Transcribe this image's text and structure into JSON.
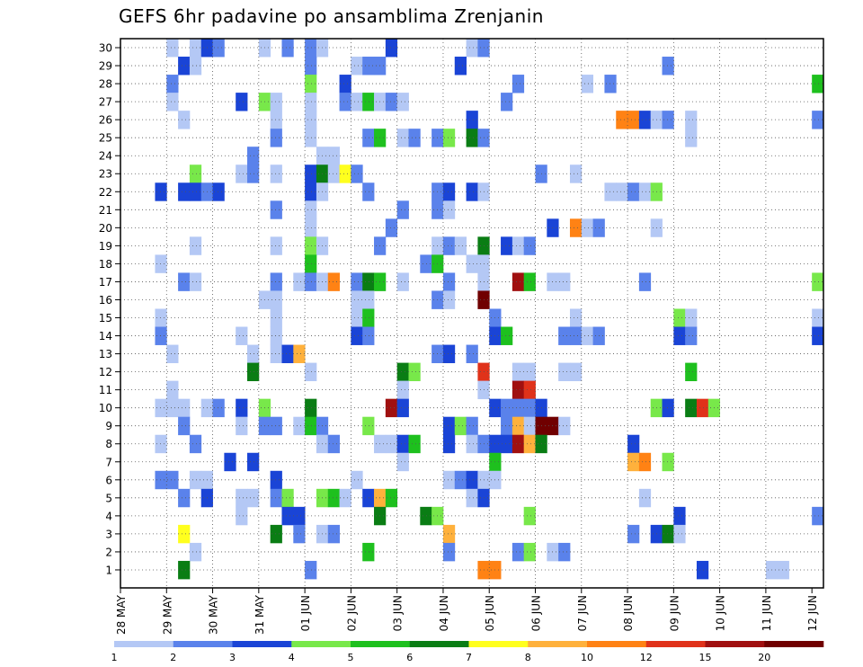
{
  "chart_data": {
    "type": "heatmap",
    "title": "GEFS 6hr padavine po ansamblima Zrenjanin",
    "x_tick_labels": [
      "28 MAY",
      "29 MAY",
      "30 MAY",
      "31 MAY",
      "01 JUN",
      "02 JUN",
      "03 JUN",
      "04 JUN",
      "05 JUN",
      "06 JUN",
      "07 JUN",
      "08 JUN",
      "09 JUN",
      "10 JUN",
      "11 JUN",
      "12 JUN"
    ],
    "y_range": [
      0,
      30
    ],
    "y_ticks": [
      1,
      2,
      3,
      4,
      5,
      6,
      7,
      8,
      9,
      10,
      11,
      12,
      13,
      14,
      15,
      16,
      17,
      18,
      19,
      20,
      21,
      22,
      23,
      24,
      25,
      26,
      27,
      28,
      29,
      30
    ],
    "time_steps_per_day": 4,
    "n_time_steps": 61,
    "grid": true,
    "colorbar": {
      "levels": [
        1,
        2,
        3,
        4,
        5,
        6,
        7,
        8,
        10,
        12,
        15,
        20
      ],
      "label_levels": [
        1,
        2,
        3,
        4,
        5,
        6,
        7,
        8,
        10,
        12,
        15,
        20
      ],
      "colors": [
        "#b4c8f5",
        "#5a82eb",
        "#1a44d6",
        "#78e84a",
        "#1ec01e",
        "#0a7d14",
        "#ffff1e",
        "#ffb13c",
        "#ff8214",
        "#e0321a",
        "#a01010",
        "#700000"
      ]
    },
    "cells": [
      [
        4,
        30,
        1
      ],
      [
        6,
        30,
        1
      ],
      [
        7,
        30,
        3
      ],
      [
        8,
        30,
        2
      ],
      [
        12,
        30,
        1
      ],
      [
        14,
        30,
        2
      ],
      [
        16,
        30,
        2
      ],
      [
        17,
        30,
        1
      ],
      [
        23,
        30,
        3
      ],
      [
        30,
        30,
        1
      ],
      [
        31,
        30,
        2
      ],
      [
        5,
        29,
        3
      ],
      [
        6,
        29,
        1
      ],
      [
        16,
        29,
        2
      ],
      [
        20,
        29,
        1
      ],
      [
        21,
        29,
        2
      ],
      [
        22,
        29,
        2
      ],
      [
        29,
        29,
        3
      ],
      [
        47,
        29,
        2
      ],
      [
        4,
        28,
        2
      ],
      [
        16,
        28,
        4
      ],
      [
        19,
        28,
        3
      ],
      [
        34,
        28,
        2
      ],
      [
        40,
        28,
        1
      ],
      [
        42,
        28,
        2
      ],
      [
        60,
        28,
        5
      ],
      [
        4,
        27,
        1
      ],
      [
        10,
        27,
        3
      ],
      [
        12,
        27,
        4
      ],
      [
        13,
        27,
        1
      ],
      [
        16,
        27,
        1
      ],
      [
        19,
        27,
        2
      ],
      [
        20,
        27,
        1
      ],
      [
        21,
        27,
        5
      ],
      [
        22,
        27,
        1
      ],
      [
        23,
        27,
        2
      ],
      [
        24,
        27,
        1
      ],
      [
        33,
        27,
        2
      ],
      [
        5,
        26,
        1
      ],
      [
        13,
        26,
        1
      ],
      [
        16,
        26,
        1
      ],
      [
        30,
        26,
        3
      ],
      [
        43,
        26,
        9
      ],
      [
        44,
        26,
        9
      ],
      [
        45,
        26,
        3
      ],
      [
        46,
        26,
        1
      ],
      [
        47,
        26,
        2
      ],
      [
        49,
        26,
        1
      ],
      [
        60,
        26,
        2
      ],
      [
        13,
        25,
        2
      ],
      [
        16,
        25,
        1
      ],
      [
        21,
        25,
        2
      ],
      [
        22,
        25,
        5
      ],
      [
        24,
        25,
        1
      ],
      [
        25,
        25,
        2
      ],
      [
        27,
        25,
        2
      ],
      [
        28,
        25,
        4
      ],
      [
        30,
        25,
        6
      ],
      [
        31,
        25,
        2
      ],
      [
        49,
        25,
        1
      ],
      [
        11,
        24,
        2
      ],
      [
        17,
        24,
        1
      ],
      [
        18,
        24,
        1
      ],
      [
        6,
        23,
        4
      ],
      [
        10,
        23,
        1
      ],
      [
        11,
        23,
        2
      ],
      [
        13,
        23,
        1
      ],
      [
        16,
        23,
        3
      ],
      [
        17,
        23,
        6
      ],
      [
        18,
        23,
        1
      ],
      [
        19,
        23,
        7
      ],
      [
        20,
        23,
        2
      ],
      [
        36,
        23,
        2
      ],
      [
        39,
        23,
        1
      ],
      [
        3,
        22,
        3
      ],
      [
        5,
        22,
        3
      ],
      [
        6,
        22,
        3
      ],
      [
        7,
        22,
        2
      ],
      [
        8,
        22,
        3
      ],
      [
        16,
        22,
        3
      ],
      [
        17,
        22,
        1
      ],
      [
        21,
        22,
        2
      ],
      [
        27,
        22,
        2
      ],
      [
        28,
        22,
        3
      ],
      [
        30,
        22,
        3
      ],
      [
        31,
        22,
        1
      ],
      [
        42,
        22,
        1
      ],
      [
        43,
        22,
        1
      ],
      [
        44,
        22,
        2
      ],
      [
        45,
        22,
        1
      ],
      [
        46,
        22,
        4
      ],
      [
        13,
        21,
        2
      ],
      [
        16,
        21,
        1
      ],
      [
        24,
        21,
        2
      ],
      [
        27,
        21,
        2
      ],
      [
        28,
        21,
        1
      ],
      [
        16,
        20,
        1
      ],
      [
        23,
        20,
        2
      ],
      [
        37,
        20,
        3
      ],
      [
        39,
        20,
        9
      ],
      [
        40,
        20,
        1
      ],
      [
        41,
        20,
        2
      ],
      [
        46,
        20,
        1
      ],
      [
        6,
        19,
        1
      ],
      [
        13,
        19,
        1
      ],
      [
        16,
        19,
        4
      ],
      [
        17,
        19,
        1
      ],
      [
        22,
        19,
        2
      ],
      [
        27,
        19,
        1
      ],
      [
        28,
        19,
        2
      ],
      [
        29,
        19,
        1
      ],
      [
        31,
        19,
        6
      ],
      [
        33,
        19,
        3
      ],
      [
        34,
        19,
        1
      ],
      [
        35,
        19,
        2
      ],
      [
        3,
        18,
        1
      ],
      [
        16,
        18,
        5
      ],
      [
        26,
        18,
        2
      ],
      [
        27,
        18,
        5
      ],
      [
        30,
        18,
        1
      ],
      [
        31,
        18,
        1
      ],
      [
        5,
        17,
        2
      ],
      [
        6,
        17,
        1
      ],
      [
        13,
        17,
        2
      ],
      [
        15,
        17,
        1
      ],
      [
        16,
        17,
        2
      ],
      [
        17,
        17,
        1
      ],
      [
        18,
        17,
        9
      ],
      [
        20,
        17,
        2
      ],
      [
        21,
        17,
        6
      ],
      [
        22,
        17,
        5
      ],
      [
        24,
        17,
        1
      ],
      [
        28,
        17,
        2
      ],
      [
        31,
        17,
        1
      ],
      [
        34,
        17,
        11
      ],
      [
        35,
        17,
        5
      ],
      [
        37,
        17,
        1
      ],
      [
        38,
        17,
        1
      ],
      [
        45,
        17,
        2
      ],
      [
        60,
        17,
        4
      ],
      [
        12,
        16,
        1
      ],
      [
        13,
        16,
        1
      ],
      [
        20,
        16,
        1
      ],
      [
        21,
        16,
        1
      ],
      [
        27,
        16,
        2
      ],
      [
        28,
        16,
        1
      ],
      [
        31,
        16,
        12
      ],
      [
        3,
        15,
        1
      ],
      [
        13,
        15,
        1
      ],
      [
        20,
        15,
        1
      ],
      [
        21,
        15,
        5
      ],
      [
        32,
        15,
        2
      ],
      [
        39,
        15,
        1
      ],
      [
        48,
        15,
        4
      ],
      [
        49,
        15,
        1
      ],
      [
        60,
        15,
        1
      ],
      [
        3,
        14,
        2
      ],
      [
        10,
        14,
        1
      ],
      [
        13,
        14,
        1
      ],
      [
        20,
        14,
        3
      ],
      [
        21,
        14,
        2
      ],
      [
        32,
        14,
        3
      ],
      [
        33,
        14,
        5
      ],
      [
        38,
        14,
        2
      ],
      [
        39,
        14,
        2
      ],
      [
        40,
        14,
        1
      ],
      [
        41,
        14,
        2
      ],
      [
        48,
        14,
        3
      ],
      [
        49,
        14,
        2
      ],
      [
        60,
        14,
        3
      ],
      [
        4,
        13,
        1
      ],
      [
        11,
        13,
        1
      ],
      [
        13,
        13,
        1
      ],
      [
        14,
        13,
        3
      ],
      [
        15,
        13,
        8
      ],
      [
        27,
        13,
        2
      ],
      [
        28,
        13,
        3
      ],
      [
        30,
        13,
        2
      ],
      [
        11,
        12,
        6
      ],
      [
        16,
        12,
        1
      ],
      [
        24,
        12,
        6
      ],
      [
        25,
        12,
        4
      ],
      [
        31,
        12,
        10
      ],
      [
        34,
        12,
        1
      ],
      [
        35,
        12,
        1
      ],
      [
        38,
        12,
        1
      ],
      [
        39,
        12,
        1
      ],
      [
        49,
        12,
        5
      ],
      [
        4,
        11,
        1
      ],
      [
        24,
        11,
        1
      ],
      [
        31,
        11,
        1
      ],
      [
        34,
        11,
        11
      ],
      [
        35,
        11,
        10
      ],
      [
        3,
        10,
        1
      ],
      [
        4,
        10,
        1
      ],
      [
        5,
        10,
        1
      ],
      [
        7,
        10,
        1
      ],
      [
        8,
        10,
        2
      ],
      [
        10,
        10,
        3
      ],
      [
        12,
        10,
        4
      ],
      [
        16,
        10,
        6
      ],
      [
        23,
        10,
        11
      ],
      [
        24,
        10,
        3
      ],
      [
        32,
        10,
        3
      ],
      [
        33,
        10,
        2
      ],
      [
        34,
        10,
        2
      ],
      [
        35,
        10,
        2
      ],
      [
        36,
        10,
        3
      ],
      [
        46,
        10,
        4
      ],
      [
        47,
        10,
        3
      ],
      [
        49,
        10,
        6
      ],
      [
        50,
        10,
        10
      ],
      [
        51,
        10,
        4
      ],
      [
        5,
        9,
        2
      ],
      [
        10,
        9,
        1
      ],
      [
        12,
        9,
        2
      ],
      [
        13,
        9,
        2
      ],
      [
        15,
        9,
        1
      ],
      [
        16,
        9,
        5
      ],
      [
        17,
        9,
        2
      ],
      [
        21,
        9,
        4
      ],
      [
        28,
        9,
        3
      ],
      [
        29,
        9,
        4
      ],
      [
        30,
        9,
        2
      ],
      [
        33,
        9,
        2
      ],
      [
        34,
        9,
        8
      ],
      [
        35,
        9,
        1
      ],
      [
        36,
        9,
        12
      ],
      [
        37,
        9,
        12
      ],
      [
        38,
        9,
        1
      ],
      [
        3,
        8,
        1
      ],
      [
        6,
        8,
        2
      ],
      [
        17,
        8,
        1
      ],
      [
        18,
        8,
        2
      ],
      [
        22,
        8,
        1
      ],
      [
        23,
        8,
        1
      ],
      [
        24,
        8,
        3
      ],
      [
        25,
        8,
        5
      ],
      [
        28,
        8,
        3
      ],
      [
        30,
        8,
        1
      ],
      [
        31,
        8,
        2
      ],
      [
        32,
        8,
        3
      ],
      [
        33,
        8,
        3
      ],
      [
        34,
        8,
        11
      ],
      [
        35,
        8,
        8
      ],
      [
        36,
        8,
        6
      ],
      [
        44,
        8,
        3
      ],
      [
        9,
        7,
        3
      ],
      [
        11,
        7,
        3
      ],
      [
        24,
        7,
        1
      ],
      [
        32,
        7,
        5
      ],
      [
        44,
        7,
        8
      ],
      [
        45,
        7,
        9
      ],
      [
        47,
        7,
        4
      ],
      [
        3,
        6,
        2
      ],
      [
        4,
        6,
        2
      ],
      [
        6,
        6,
        1
      ],
      [
        7,
        6,
        1
      ],
      [
        13,
        6,
        3
      ],
      [
        20,
        6,
        1
      ],
      [
        28,
        6,
        1
      ],
      [
        29,
        6,
        2
      ],
      [
        30,
        6,
        3
      ],
      [
        31,
        6,
        1
      ],
      [
        32,
        6,
        1
      ],
      [
        5,
        5,
        2
      ],
      [
        7,
        5,
        3
      ],
      [
        10,
        5,
        1
      ],
      [
        11,
        5,
        1
      ],
      [
        13,
        5,
        2
      ],
      [
        14,
        5,
        4
      ],
      [
        17,
        5,
        4
      ],
      [
        18,
        5,
        5
      ],
      [
        19,
        5,
        1
      ],
      [
        21,
        5,
        3
      ],
      [
        22,
        5,
        8
      ],
      [
        23,
        5,
        5
      ],
      [
        30,
        5,
        1
      ],
      [
        31,
        5,
        3
      ],
      [
        45,
        5,
        1
      ],
      [
        10,
        4,
        1
      ],
      [
        14,
        4,
        3
      ],
      [
        15,
        4,
        3
      ],
      [
        22,
        4,
        6
      ],
      [
        26,
        4,
        6
      ],
      [
        27,
        4,
        4
      ],
      [
        35,
        4,
        4
      ],
      [
        48,
        4,
        3
      ],
      [
        60,
        4,
        2
      ],
      [
        5,
        3,
        7
      ],
      [
        13,
        3,
        6
      ],
      [
        15,
        3,
        2
      ],
      [
        17,
        3,
        1
      ],
      [
        18,
        3,
        2
      ],
      [
        28,
        3,
        8
      ],
      [
        44,
        3,
        2
      ],
      [
        46,
        3,
        3
      ],
      [
        47,
        3,
        6
      ],
      [
        48,
        3,
        1
      ],
      [
        6,
        2,
        1
      ],
      [
        21,
        2,
        5
      ],
      [
        28,
        2,
        2
      ],
      [
        34,
        2,
        2
      ],
      [
        35,
        2,
        4
      ],
      [
        37,
        2,
        1
      ],
      [
        38,
        2,
        2
      ],
      [
        5,
        1,
        6
      ],
      [
        16,
        1,
        2
      ],
      [
        31,
        1,
        9
      ],
      [
        32,
        1,
        9
      ],
      [
        50,
        1,
        3
      ],
      [
        56,
        1,
        1
      ],
      [
        57,
        1,
        1
      ]
    ]
  }
}
